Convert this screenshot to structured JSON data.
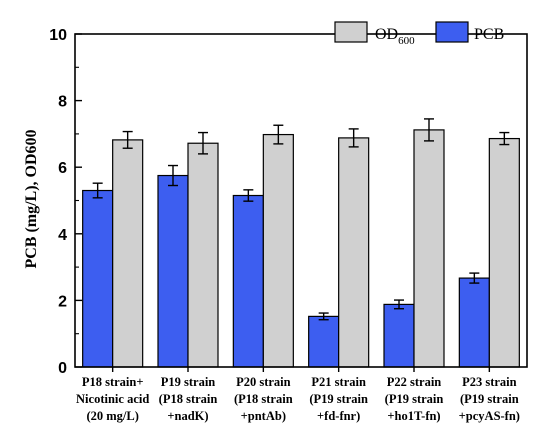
{
  "chart_data": {
    "type": "bar",
    "title": "",
    "xlabel": "",
    "ylabel": "PCB (mg/L), OD600",
    "ylim": [
      0,
      10
    ],
    "yticks": [
      0,
      2,
      4,
      6,
      8,
      10
    ],
    "grid": false,
    "legend": {
      "placement": "top-right"
    },
    "categories": [
      [
        "P18 strain+",
        "Nicotinic acid",
        "(20 mg/L)"
      ],
      [
        "P19 strain",
        "(P18 strain",
        "+nadK)"
      ],
      [
        "P20 strain",
        "(P18 strain",
        "+pntAb)"
      ],
      [
        "P21 strain",
        "(P19 strain",
        "+fd-fnr)"
      ],
      [
        "P22 strain",
        "(P19 strain",
        "+ho1T-fn)"
      ],
      [
        "P23 strain",
        "(P19 strain",
        "+pcyAS-fn)"
      ]
    ],
    "series": [
      {
        "name": "PCB",
        "color": "#3d5ef0",
        "values": [
          5.3,
          5.75,
          5.15,
          1.52,
          1.88,
          2.67
        ],
        "errors": [
          0.22,
          0.3,
          0.17,
          0.1,
          0.13,
          0.15
        ]
      },
      {
        "name": "OD600",
        "color": "#d0d0d0",
        "values": [
          6.82,
          6.72,
          6.98,
          6.88,
          7.12,
          6.86
        ],
        "errors": [
          0.25,
          0.32,
          0.28,
          0.27,
          0.33,
          0.18
        ]
      }
    ]
  }
}
